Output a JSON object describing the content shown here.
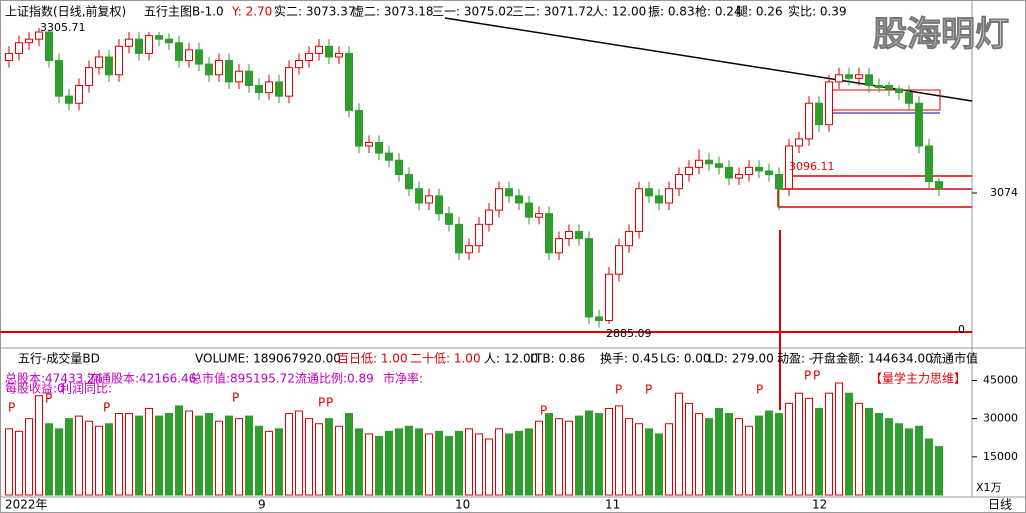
{
  "header": {
    "symbol": "上证指数(日线,前复权)",
    "indicator": "五行主图B-1.0",
    "items": [
      "Y: 2.70",
      "实二: 3073.37",
      "虚二: 3073.18",
      "三一: 3075.02",
      "三二: 3071.72",
      "人: 12.00",
      "振: 0.83",
      "枪: 0.24",
      "腿: 0.26",
      "实比: 0.39"
    ]
  },
  "watermark": "股海明灯",
  "annotations": {
    "high_label": "3305.71",
    "low_label": "2885.09",
    "level_label": "3096.11",
    "zero_label": "0"
  },
  "volume_header": {
    "title": "五行-成交量BD",
    "items": [
      "VOLUME: 189067920.00",
      "百日低: 1.00",
      "二十低: 1.00",
      "人: 12.00",
      "LTB: 0.86",
      "换手: 0.45",
      "LG: 0.00",
      "LD: 279.00",
      "动盈: -",
      "开盘金额: 144634.00",
      "流通市值"
    ],
    "info": [
      "总股本:47433.24",
      "流通股本:42166.46",
      "总市值:895195.72",
      "流通比例:0.89",
      "市净率:"
    ],
    "info2": [
      "每股收益:0",
      "利润同比:"
    ],
    "badge": "【量学主力思维】",
    "p_markers": [
      "P",
      "P",
      "P",
      "P",
      "P",
      "P",
      "P",
      "P",
      "P",
      "P",
      "P",
      "P"
    ],
    "unit": "X1万"
  },
  "x_labels": [
    "2022年",
    "9",
    "10",
    "11",
    "12"
  ],
  "period": "日线",
  "chart_data": {
    "type": "candlestick",
    "open": [
      3260,
      3270,
      3285,
      3290,
      3300,
      3260,
      3210,
      3200,
      3225,
      3250,
      3265,
      3240,
      3280,
      3290,
      3270,
      3295,
      3290,
      3285,
      3260,
      3275,
      3255,
      3240,
      3260,
      3230,
      3245,
      3225,
      3215,
      3230,
      3210,
      3250,
      3260,
      3270,
      3280,
      3265,
      3270,
      3190,
      3140,
      3145,
      3130,
      3120,
      3100,
      3080,
      3060,
      3070,
      3045,
      3030,
      2990,
      3000,
      3030,
      3050,
      3080,
      3070,
      3060,
      3040,
      3045,
      2990,
      3010,
      3020,
      3010,
      2900,
      2895,
      2960,
      3000,
      3020,
      3080,
      3070,
      3060,
      3080,
      3100,
      3110,
      3120,
      3115,
      3110,
      3095,
      3100,
      3110,
      3105,
      3100,
      3080,
      3140,
      3150,
      3200,
      3170,
      3230,
      3240,
      3235,
      3240,
      3225,
      3225,
      3220,
      3215,
      3200,
      3140,
      3090
    ],
    "close": [
      3270,
      3285,
      3290,
      3300,
      3260,
      3210,
      3200,
      3225,
      3250,
      3265,
      3240,
      3280,
      3290,
      3270,
      3295,
      3290,
      3285,
      3260,
      3275,
      3255,
      3240,
      3260,
      3230,
      3245,
      3225,
      3215,
      3230,
      3210,
      3250,
      3260,
      3270,
      3280,
      3265,
      3270,
      3190,
      3140,
      3145,
      3130,
      3120,
      3100,
      3080,
      3060,
      3070,
      3045,
      3030,
      2990,
      3000,
      3030,
      3050,
      3080,
      3070,
      3060,
      3040,
      3045,
      2990,
      3010,
      3020,
      3010,
      2900,
      2895,
      2960,
      3000,
      3020,
      3080,
      3070,
      3060,
      3080,
      3100,
      3110,
      3120,
      3115,
      3110,
      3095,
      3100,
      3110,
      3105,
      3100,
      3080,
      3140,
      3150,
      3200,
      3170,
      3230,
      3240,
      3235,
      3240,
      3225,
      3222,
      3220,
      3215,
      3200,
      3140,
      3090,
      3080
    ],
    "high": [
      3280,
      3295,
      3300,
      3305.71,
      3302,
      3270,
      3220,
      3235,
      3260,
      3275,
      3275,
      3290,
      3300,
      3300,
      3300,
      3300,
      3298,
      3295,
      3285,
      3285,
      3265,
      3270,
      3270,
      3255,
      3255,
      3235,
      3240,
      3240,
      3260,
      3270,
      3280,
      3290,
      3290,
      3280,
      3280,
      3200,
      3155,
      3155,
      3140,
      3130,
      3110,
      3090,
      3080,
      3080,
      3055,
      3040,
      3010,
      3040,
      3060,
      3090,
      3090,
      3080,
      3070,
      3055,
      3055,
      3020,
      3030,
      3030,
      3020,
      2910,
      2970,
      3010,
      3030,
      3090,
      3090,
      3080,
      3090,
      3110,
      3120,
      3135,
      3130,
      3125,
      3120,
      3110,
      3120,
      3120,
      3115,
      3110,
      3150,
      3160,
      3210,
      3210,
      3240,
      3250,
      3250,
      3250,
      3250,
      3235,
      3230,
      3225,
      3225,
      3210,
      3150,
      3095
    ],
    "low": [
      3250,
      3260,
      3275,
      3280,
      3250,
      3200,
      3190,
      3190,
      3215,
      3240,
      3230,
      3230,
      3270,
      3260,
      3260,
      3280,
      3275,
      3250,
      3250,
      3245,
      3230,
      3230,
      3220,
      3220,
      3215,
      3205,
      3205,
      3200,
      3200,
      3240,
      3250,
      3260,
      3255,
      3255,
      3180,
      3130,
      3130,
      3120,
      3110,
      3090,
      3070,
      3050,
      3050,
      3035,
      3020,
      2980,
      2980,
      2990,
      3020,
      3040,
      3060,
      3050,
      3030,
      3030,
      2980,
      2980,
      3000,
      3000,
      2890,
      2885.09,
      2890,
      2950,
      2990,
      3010,
      3060,
      3050,
      3050,
      3070,
      3090,
      3100,
      3105,
      3100,
      3085,
      3085,
      3090,
      3095,
      3090,
      3050,
      3070,
      3130,
      3140,
      3160,
      3160,
      3220,
      3225,
      3225,
      3215,
      3215,
      3210,
      3205,
      3190,
      3130,
      3080,
      3070
    ],
    "volume": [
      26000,
      25000,
      30000,
      39000,
      28000,
      26000,
      30000,
      31000,
      29000,
      27000,
      28000,
      32000,
      32000,
      31000,
      34000,
      31000,
      32000,
      35000,
      33000,
      31000,
      32000,
      29000,
      31000,
      30000,
      31000,
      27000,
      25000,
      26000,
      32000,
      33000,
      30000,
      28000,
      30000,
      27000,
      32000,
      26000,
      24000,
      23000,
      25000,
      26000,
      27000,
      26000,
      24000,
      25000,
      23000,
      25000,
      26000,
      24000,
      22000,
      26000,
      24000,
      25000,
      26000,
      29000,
      32000,
      30000,
      29000,
      31000,
      33000,
      32000,
      34000,
      35000,
      30000,
      28000,
      26000,
      24000,
      28000,
      40000,
      36000,
      32000,
      30000,
      34000,
      32000,
      30000,
      27000,
      31000,
      33000,
      32000,
      36000,
      40000,
      38000,
      34000,
      40000,
      44000,
      40000,
      36000,
      34000,
      32000,
      30000,
      28000,
      26000,
      27000,
      22000,
      19000
    ],
    "up_color": "#e00000",
    "down_color": "#2f9e2f",
    "ylim": [
      2867.6,
      3345
    ],
    "yticks": [
      3074
    ],
    "y2lim": [
      0,
      55000
    ],
    "y2ticks": [
      15000,
      30000,
      45000
    ]
  }
}
